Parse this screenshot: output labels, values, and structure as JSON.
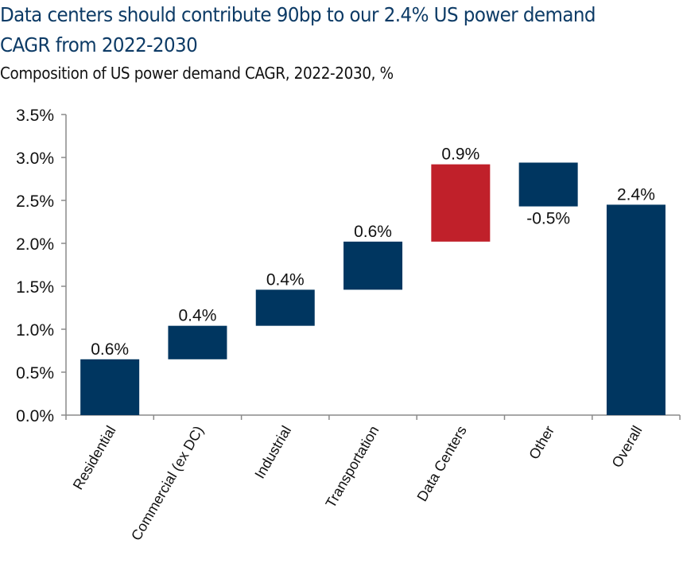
{
  "header": {
    "title": "Data centers should contribute 90bp to our 2.4% US power demand CAGR from 2022-2030",
    "subtitle": "Composition of US power demand CAGR, 2022-2030, %"
  },
  "chart_data": {
    "type": "bar",
    "subtype": "waterfall",
    "title": "Data centers should contribute 90bp to our 2.4% US power demand CAGR from 2022-2030",
    "subtitle": "Composition of US power demand CAGR, 2022-2030, %",
    "xlabel": "",
    "ylabel": "",
    "ylim": [
      0,
      3.5
    ],
    "yticks": [
      0.0,
      0.5,
      1.0,
      1.5,
      2.0,
      2.5,
      3.0,
      3.5
    ],
    "ytick_labels": [
      "0.0%",
      "0.5%",
      "1.0%",
      "1.5%",
      "2.0%",
      "2.5%",
      "3.0%",
      "3.5%"
    ],
    "grid": false,
    "legend": "none",
    "categories": [
      "Residential",
      "Commercial (ex DC)",
      "Industrial",
      "Transportation",
      "Data Centers",
      "Other",
      "Overall"
    ],
    "values": [
      0.6,
      0.4,
      0.4,
      0.6,
      0.9,
      -0.5,
      2.4
    ],
    "bar_start": [
      0.0,
      0.65,
      1.04,
      1.46,
      2.02,
      2.94,
      0.0
    ],
    "bar_end": [
      0.65,
      1.04,
      1.46,
      2.02,
      2.92,
      2.43,
      2.45
    ],
    "data_labels": [
      "0.6%",
      "0.4%",
      "0.4%",
      "0.6%",
      "0.9%",
      "-0.5%",
      "2.4%"
    ],
    "colors": [
      "#003660",
      "#003660",
      "#003660",
      "#003660",
      "#c0202a",
      "#003660",
      "#003660"
    ]
  }
}
